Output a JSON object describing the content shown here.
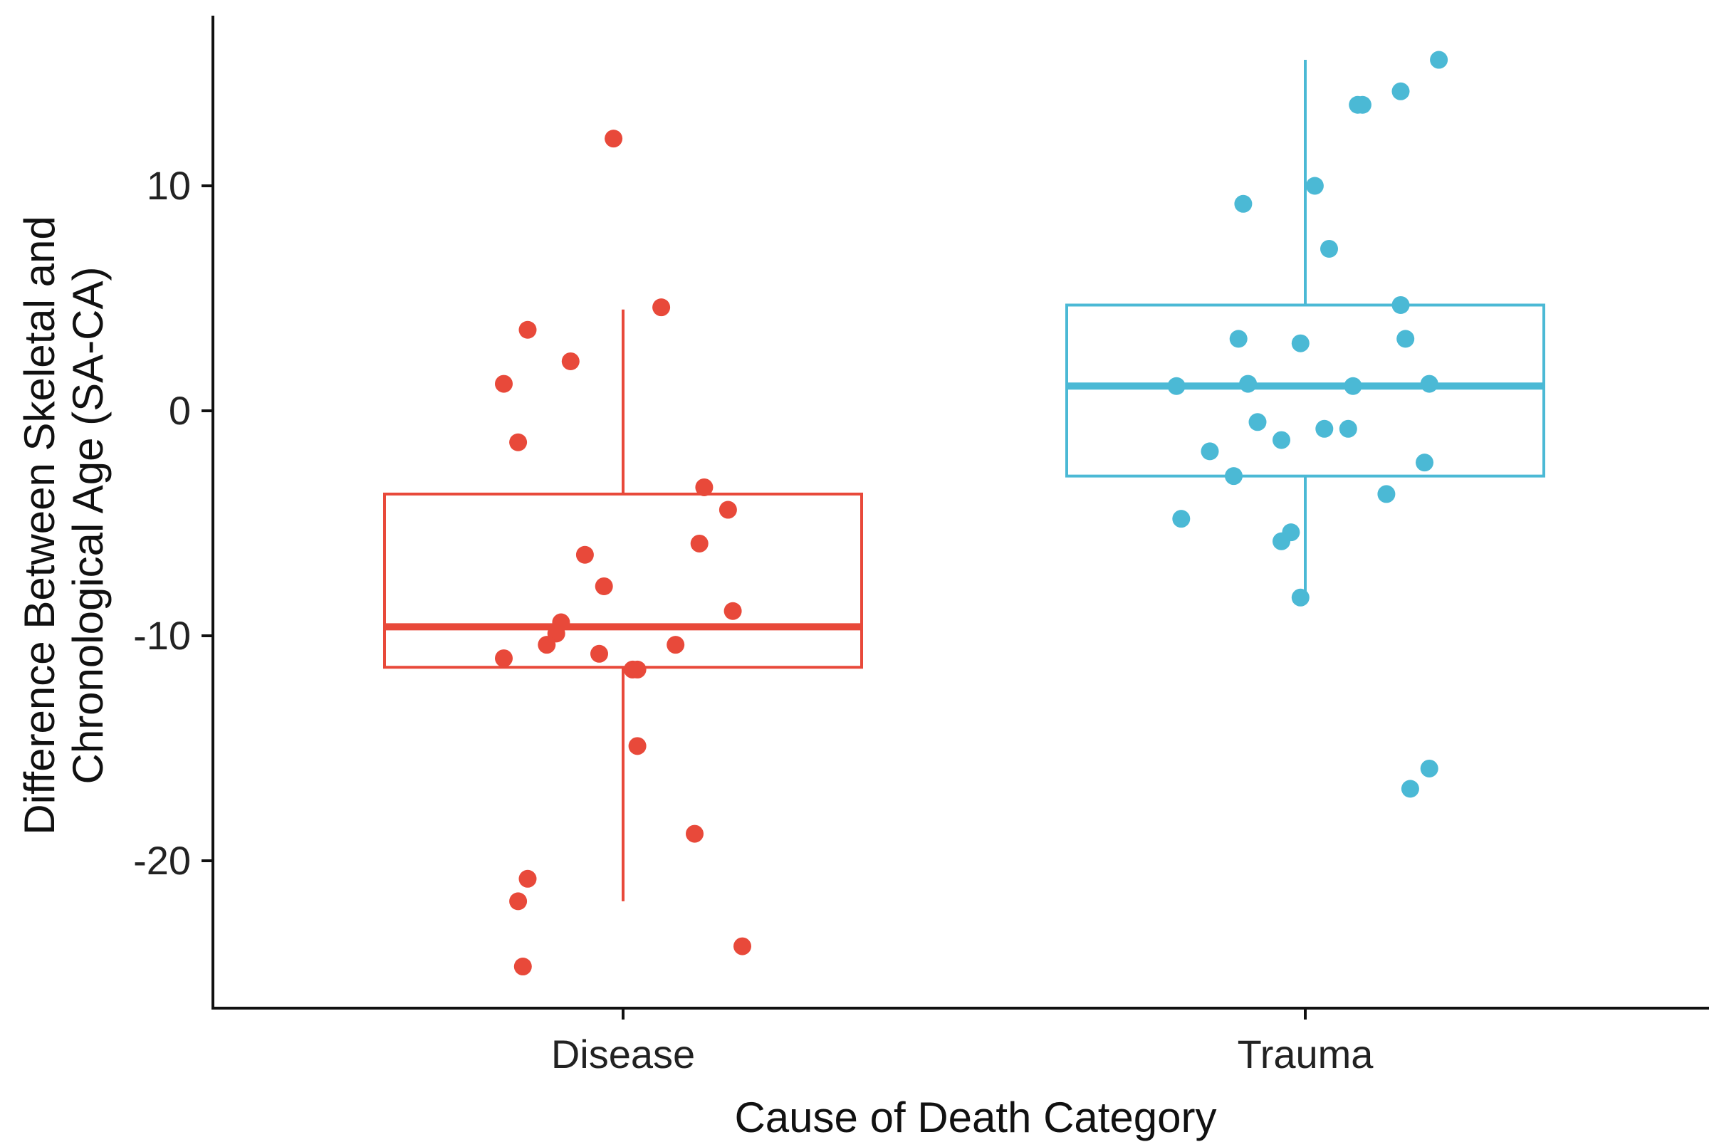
{
  "chart_data": {
    "type": "box",
    "xlabel": "Cause of Death Category",
    "ylabel_lines": [
      "Difference Between Skeletal and",
      "Chronological Age (SA-CA)"
    ],
    "categories": [
      "Disease",
      "Trauma"
    ],
    "y_ticks": [
      10,
      0,
      -10,
      -20
    ],
    "y_tick_labels": [
      "10",
      "0",
      "-10",
      "-20"
    ],
    "ylim": [
      -26.5,
      17.5
    ],
    "grid": false,
    "legend": "none",
    "series": [
      {
        "name": "Disease",
        "color": "#E8493A",
        "box": {
          "lower_whisker": -21.8,
          "q1": -11.4,
          "median": -9.6,
          "q3": -3.7,
          "upper_whisker": 4.5
        },
        "points": [
          {
            "x": -0.25,
            "y": 1.2
          },
          {
            "x": -0.22,
            "y": -1.4
          },
          {
            "x": -0.2,
            "y": 3.6
          },
          {
            "x": -0.11,
            "y": 2.2
          },
          {
            "x": -0.02,
            "y": 12.1
          },
          {
            "x": 0.08,
            "y": 4.6
          },
          {
            "x": 0.17,
            "y": -3.4
          },
          {
            "x": 0.22,
            "y": -4.4
          },
          {
            "x": 0.16,
            "y": -5.9
          },
          {
            "x": -0.08,
            "y": -6.4
          },
          {
            "x": -0.04,
            "y": -7.8
          },
          {
            "x": 0.23,
            "y": -8.9
          },
          {
            "x": -0.13,
            "y": -9.4
          },
          {
            "x": -0.14,
            "y": -9.9
          },
          {
            "x": -0.16,
            "y": -10.4
          },
          {
            "x": -0.25,
            "y": -11.0
          },
          {
            "x": -0.05,
            "y": -10.8
          },
          {
            "x": 0.11,
            "y": -10.4
          },
          {
            "x": 0.02,
            "y": -11.5
          },
          {
            "x": 0.03,
            "y": -11.5
          },
          {
            "x": 0.03,
            "y": -14.9
          },
          {
            "x": 0.15,
            "y": -18.8
          },
          {
            "x": -0.2,
            "y": -20.8
          },
          {
            "x": -0.22,
            "y": -21.8
          },
          {
            "x": -0.21,
            "y": -24.7
          },
          {
            "x": 0.25,
            "y": -23.8
          }
        ]
      },
      {
        "name": "Trauma",
        "color": "#4BB9D5",
        "box": {
          "lower_whisker": -8.3,
          "q1": -2.9,
          "median": 1.1,
          "q3": 4.7,
          "upper_whisker": 15.6
        },
        "points": [
          {
            "x": 0.28,
            "y": 15.6
          },
          {
            "x": 0.2,
            "y": 14.2
          },
          {
            "x": 0.11,
            "y": 13.6
          },
          {
            "x": 0.12,
            "y": 13.6
          },
          {
            "x": 0.02,
            "y": 10.0
          },
          {
            "x": -0.13,
            "y": 9.2
          },
          {
            "x": 0.05,
            "y": 7.2
          },
          {
            "x": 0.2,
            "y": 4.7
          },
          {
            "x": -0.14,
            "y": 3.2
          },
          {
            "x": -0.01,
            "y": 3.0
          },
          {
            "x": 0.21,
            "y": 3.2
          },
          {
            "x": -0.27,
            "y": 1.1
          },
          {
            "x": -0.12,
            "y": 1.2
          },
          {
            "x": 0.1,
            "y": 1.1
          },
          {
            "x": 0.26,
            "y": 1.2
          },
          {
            "x": -0.1,
            "y": -0.5
          },
          {
            "x": 0.04,
            "y": -0.8
          },
          {
            "x": 0.09,
            "y": -0.8
          },
          {
            "x": -0.05,
            "y": -1.3
          },
          {
            "x": -0.2,
            "y": -1.8
          },
          {
            "x": 0.25,
            "y": -2.3
          },
          {
            "x": -0.15,
            "y": -2.9
          },
          {
            "x": 0.17,
            "y": -3.7
          },
          {
            "x": -0.26,
            "y": -4.8
          },
          {
            "x": -0.03,
            "y": -5.4
          },
          {
            "x": -0.05,
            "y": -5.8
          },
          {
            "x": -0.01,
            "y": -8.3
          },
          {
            "x": 0.26,
            "y": -15.9
          },
          {
            "x": 0.22,
            "y": -16.8
          }
        ]
      }
    ]
  }
}
